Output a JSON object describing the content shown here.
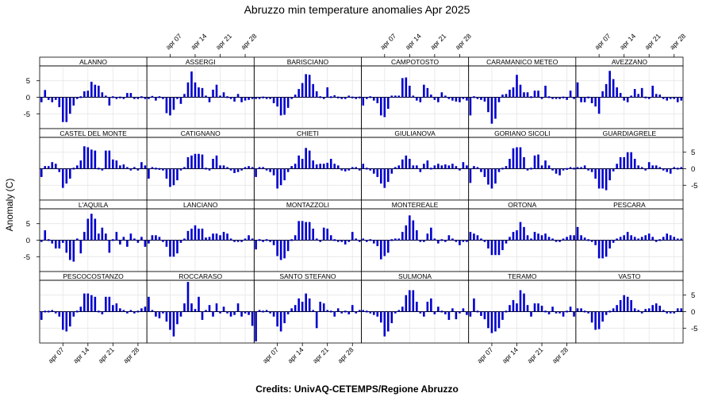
{
  "chart_data": {
    "type": "bar",
    "title": "Abruzzo min temperature anomalies Apr 2025",
    "ylabel": "Anomaly (C)",
    "credits": "Credits: UnivAQ-CETEMPS/Regione Abruzzo",
    "x_ticks": [
      {
        "label": "apr 07",
        "day": 7
      },
      {
        "label": "apr 14",
        "day": 14
      },
      {
        "label": "apr 21",
        "day": 21
      },
      {
        "label": "apr 28",
        "day": 28
      }
    ],
    "y_ticks": [
      5,
      0,
      -5
    ],
    "xlim": [
      0.5,
      30.5
    ],
    "ylim": [
      -9.5,
      9.5
    ],
    "bar_color": "#0000cc",
    "grid": true,
    "layout": "6 columns x 4 rows of panels",
    "stations": [
      {
        "name": "ALANNO",
        "values": [
          -1.5,
          2.2,
          -0.8,
          -1.5,
          -0.8,
          -3.0,
          -7.5,
          -7.5,
          -5.0,
          -2.5,
          -0.5,
          0.3,
          1.8,
          2.0,
          4.7,
          3.8,
          3.5,
          1.5,
          0.5,
          -2.5,
          0.3,
          -0.5,
          0.2,
          -0.5,
          1.3,
          1.3,
          -0.5,
          0.0,
          0.3,
          0.0
        ]
      },
      {
        "name": "ASSERGI",
        "values": [
          -0.3,
          0.4,
          -1.0,
          0.3,
          -0.3,
          -4.8,
          -5.5,
          -3.8,
          -0.5,
          -2.0,
          1.0,
          4.5,
          7.8,
          4.5,
          3.0,
          2.8,
          0.5,
          -1.5,
          2.3,
          3.8,
          0.5,
          1.5,
          0.3,
          -0.5,
          -1.3,
          1.0,
          -1.5,
          -1.0,
          -0.8,
          -0.3
        ]
      },
      {
        "name": "BARISCIANO",
        "values": [
          -0.5,
          -0.3,
          0.2,
          -0.5,
          -0.3,
          -1.8,
          -2.8,
          -5.5,
          -5.3,
          -3.2,
          -0.3,
          0.8,
          2.5,
          4.3,
          7.0,
          6.8,
          4.0,
          1.8,
          0.3,
          -0.5,
          3.0,
          0.3,
          0.6,
          0.2,
          -0.5,
          -0.3,
          0.5,
          0.2,
          0.0,
          0.2
        ]
      },
      {
        "name": "CAMPOTOSTO",
        "values": [
          -2.5,
          -0.5,
          0.3,
          -1.0,
          -1.8,
          -5.5,
          -6.0,
          -3.5,
          0.5,
          0.5,
          0.5,
          5.8,
          6.0,
          3.5,
          0.5,
          -1.0,
          -1.5,
          3.8,
          2.8,
          0.8,
          -0.8,
          -1.5,
          1.5,
          0.5,
          0.0,
          -1.0,
          -1.3,
          -1.5,
          0.0,
          -1.0
        ]
      },
      {
        "name": "CARAMANICO METEO",
        "values": [
          -5.5,
          0.3,
          -0.5,
          -0.8,
          -1.3,
          -4.5,
          -8.0,
          -6.5,
          -1.5,
          0.8,
          1.0,
          2.3,
          3.0,
          6.8,
          3.8,
          1.5,
          1.5,
          0.3,
          2.0,
          2.0,
          -0.3,
          3.5,
          0.3,
          -0.5,
          -0.5,
          -0.3,
          0.2,
          -0.8,
          2.0,
          0.0
        ]
      },
      {
        "name": "AVEZZANO",
        "values": [
          4.5,
          -1.5,
          -1.5,
          0.2,
          -1.8,
          -2.8,
          -5.0,
          1.8,
          4.0,
          8.0,
          5.5,
          3.0,
          1.3,
          -1.0,
          -1.5,
          0.5,
          2.5,
          1.0,
          2.8,
          0.2,
          -0.3,
          3.5,
          1.0,
          0.8,
          -0.5,
          -1.0,
          0.0,
          -0.5,
          -1.5,
          -1.0
        ]
      },
      {
        "name": "CASTEL DEL MONTE",
        "values": [
          -2.5,
          0.8,
          0.8,
          2.0,
          1.5,
          -1.0,
          -5.8,
          -4.5,
          -3.0,
          0.3,
          1.0,
          2.5,
          6.8,
          6.5,
          5.8,
          5.5,
          0.3,
          -0.5,
          5.5,
          5.5,
          2.8,
          2.5,
          1.0,
          1.3,
          0.5,
          -0.5,
          0.5,
          0.0,
          2.0,
          1.0
        ]
      },
      {
        "name": "CATIGNANO",
        "values": [
          -3.0,
          0.5,
          0.3,
          0.2,
          0.0,
          -3.0,
          -5.5,
          -5.0,
          -3.5,
          -0.5,
          0.5,
          3.5,
          4.0,
          4.5,
          4.5,
          4.3,
          0.3,
          0.0,
          3.0,
          4.0,
          1.0,
          1.0,
          0.5,
          -0.5,
          -1.3,
          -1.0,
          0.0,
          0.5,
          0.8,
          0.5
        ]
      },
      {
        "name": "CHIETI",
        "values": [
          -2.5,
          0.5,
          0.5,
          -0.3,
          -1.0,
          -2.0,
          -6.0,
          -5.0,
          -3.5,
          -1.0,
          0.8,
          1.5,
          4.0,
          3.0,
          6.3,
          5.5,
          2.5,
          1.3,
          1.5,
          1.5,
          1.8,
          3.0,
          1.5,
          1.0,
          -0.5,
          -0.8,
          0.0,
          0.5,
          0.5,
          0.0
        ]
      },
      {
        "name": "GIULIANOVA",
        "values": [
          1.5,
          0.3,
          -0.5,
          -1.5,
          -2.5,
          -4.5,
          -5.8,
          -4.0,
          -1.5,
          0.5,
          1.0,
          2.8,
          4.0,
          3.0,
          1.0,
          1.0,
          -1.0,
          1.5,
          2.5,
          0.3,
          1.0,
          1.5,
          1.0,
          1.3,
          1.0,
          1.5,
          0.8,
          -0.5,
          2.0,
          1.0
        ]
      },
      {
        "name": "GORIANO SICOLI",
        "values": [
          -4.3,
          0.8,
          0.5,
          -1.0,
          -2.5,
          -4.8,
          -6.0,
          -4.5,
          -1.0,
          0.3,
          0.8,
          3.0,
          6.2,
          6.5,
          6.5,
          3.5,
          -0.5,
          0.3,
          4.0,
          4.3,
          1.0,
          2.5,
          1.0,
          0.0,
          -1.5,
          -2.0,
          -0.5,
          0.2,
          0.5,
          0.3
        ]
      },
      {
        "name": "GUARDIAGRELE",
        "values": [
          0.5,
          0.5,
          1.0,
          -0.5,
          -1.0,
          -3.0,
          -6.0,
          -6.0,
          -6.5,
          -3.5,
          -0.8,
          1.5,
          3.5,
          3.5,
          5.0,
          5.0,
          3.0,
          1.0,
          0.5,
          -0.5,
          2.0,
          1.0,
          1.0,
          0.5,
          -0.5,
          -1.0,
          -1.5,
          0.5,
          0.3,
          0.5
        ]
      },
      {
        "name": "L'AQUILA",
        "values": [
          -0.5,
          3.0,
          0.3,
          -1.0,
          -2.5,
          -2.5,
          -0.8,
          -3.8,
          -6.0,
          -6.5,
          0.5,
          -4.0,
          2.5,
          6.5,
          8.0,
          6.5,
          2.0,
          3.8,
          2.0,
          -3.8,
          0.3,
          2.5,
          -1.3,
          1.0,
          -2.0,
          2.0,
          0.5,
          -0.8,
          1.0,
          -2.0
        ]
      },
      {
        "name": "LANCIANO",
        "values": [
          -1.0,
          1.5,
          1.5,
          1.0,
          0.0,
          -2.0,
          -5.0,
          -5.0,
          -4.0,
          -0.8,
          0.5,
          2.8,
          3.5,
          4.5,
          3.5,
          3.5,
          0.8,
          1.0,
          2.0,
          2.0,
          1.5,
          2.5,
          2.0,
          0.5,
          -0.5,
          -0.5,
          0.0,
          0.5,
          1.5,
          0.5
        ]
      },
      {
        "name": "MONTAZZOLI",
        "values": [
          -2.8,
          0.3,
          0.0,
          0.3,
          -0.5,
          -1.5,
          -4.8,
          -6.0,
          -5.5,
          -3.3,
          0.3,
          1.5,
          5.8,
          5.8,
          5.5,
          5.5,
          3.5,
          0.5,
          -0.5,
          3.8,
          3.5,
          1.5,
          0.3,
          -0.5,
          0.0,
          -1.3,
          -0.5,
          2.5,
          0.5,
          0.0
        ]
      },
      {
        "name": "MONTEREALE",
        "values": [
          0.5,
          -0.5,
          0.3,
          -1.0,
          -1.8,
          -5.8,
          -4.8,
          -3.8,
          0.3,
          0.5,
          0.5,
          2.5,
          4.5,
          7.5,
          6.0,
          3.0,
          -0.5,
          0.0,
          2.0,
          3.8,
          0.5,
          -1.0,
          0.3,
          -0.5,
          1.5,
          0.5,
          0.0,
          -1.5,
          0.0,
          -0.5
        ]
      },
      {
        "name": "ORTONA",
        "values": [
          2.5,
          2.0,
          1.5,
          0.5,
          -0.5,
          -2.5,
          -4.5,
          -4.5,
          -4.5,
          -3.0,
          -1.0,
          1.0,
          2.5,
          3.0,
          5.5,
          4.0,
          1.5,
          0.5,
          2.5,
          2.0,
          1.5,
          2.0,
          1.0,
          0.5,
          0.0,
          -0.5,
          0.5,
          1.0,
          1.5,
          1.5
        ]
      },
      {
        "name": "PESCARA",
        "values": [
          4.0,
          1.5,
          0.8,
          0.3,
          0.0,
          -1.5,
          -5.5,
          -5.5,
          -5.0,
          -2.5,
          -0.8,
          0.5,
          1.0,
          1.5,
          2.5,
          1.5,
          1.0,
          0.5,
          1.0,
          1.5,
          2.0,
          1.0,
          -0.3,
          0.3,
          1.0,
          2.0,
          1.5,
          1.0,
          0.5,
          0.5
        ]
      },
      {
        "name": "PESCOCOSTANZO",
        "values": [
          -2.5,
          0.3,
          0.3,
          0.5,
          0.0,
          -1.5,
          -5.5,
          -6.0,
          -4.5,
          -1.5,
          0.3,
          1.5,
          5.5,
          5.5,
          5.0,
          4.5,
          0.3,
          -0.8,
          4.5,
          4.5,
          2.0,
          2.5,
          1.0,
          0.5,
          -0.3,
          0.5,
          -0.5,
          0.3,
          1.0,
          1.5
        ]
      },
      {
        "name": "ROCCARASO",
        "values": [
          4.5,
          0.5,
          -1.5,
          -2.0,
          -0.3,
          -3.0,
          -5.5,
          -7.5,
          -3.8,
          -1.5,
          2.5,
          9.0,
          2.5,
          0.8,
          4.5,
          -2.5,
          0.5,
          2.0,
          -1.5,
          2.5,
          -0.5,
          1.5,
          -0.5,
          -1.5,
          -1.0,
          2.5,
          -1.5,
          -0.5,
          -1.0,
          -4.3
        ]
      },
      {
        "name": "SANTO STEFANO",
        "values": [
          -9.0,
          0.5,
          0.3,
          0.5,
          0.0,
          -1.5,
          -4.5,
          -6.0,
          -3.5,
          -0.8,
          1.0,
          2.0,
          4.0,
          3.0,
          5.5,
          4.0,
          0.5,
          -5.0,
          3.0,
          2.5,
          0.5,
          0.3,
          -1.5,
          1.0,
          -0.5,
          0.3,
          -0.8,
          2.0,
          0.0,
          0.5
        ]
      },
      {
        "name": "SULMONA",
        "values": [
          0.5,
          0.3,
          -0.5,
          -1.0,
          -1.5,
          -3.3,
          -7.5,
          -6.0,
          -3.5,
          -0.5,
          0.5,
          1.5,
          5.0,
          6.5,
          6.5,
          3.0,
          -0.5,
          -1.5,
          3.0,
          4.0,
          -0.8,
          1.5,
          0.3,
          -0.8,
          -2.5,
          1.0,
          -2.3,
          -0.5,
          1.0,
          -1.0
        ]
      },
      {
        "name": "TERAMO",
        "values": [
          -1.5,
          4.0,
          0.3,
          -1.3,
          -2.3,
          -5.0,
          -6.5,
          -6.0,
          -5.0,
          -2.5,
          0.3,
          2.0,
          3.5,
          2.5,
          6.5,
          5.5,
          2.0,
          -1.5,
          2.5,
          2.5,
          1.8,
          0.3,
          -0.8,
          1.5,
          -0.5,
          -0.5,
          -1.5,
          0.3,
          1.5,
          -1.5
        ]
      },
      {
        "name": "VASTO",
        "values": [
          1.0,
          1.0,
          0.3,
          -0.3,
          -3.3,
          -5.5,
          -5.3,
          -3.0,
          -1.0,
          0.3,
          1.0,
          2.0,
          3.5,
          5.0,
          4.5,
          3.5,
          1.0,
          0.5,
          -0.5,
          0.8,
          1.0,
          2.0,
          2.5,
          1.8,
          0.5,
          0.0,
          -0.5,
          0.0,
          1.0,
          1.0
        ]
      }
    ]
  }
}
